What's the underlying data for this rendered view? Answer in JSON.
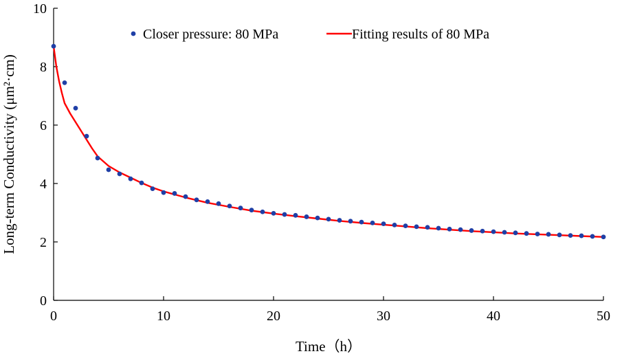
{
  "chart_data": {
    "type": "scatter",
    "title": "",
    "xlabel": "Time（h）",
    "ylabel": "Long-term Conductivity (μm²·cm)",
    "xlim": [
      0,
      50
    ],
    "ylim": [
      0,
      10
    ],
    "xticks": [
      0,
      10,
      20,
      30,
      40,
      50
    ],
    "yticks": [
      0,
      2,
      4,
      6,
      8,
      10
    ],
    "grid": false,
    "legend_position": "top",
    "series": [
      {
        "name": "Closer pressure: 80 MPa",
        "kind": "scatter",
        "color": "#1f3fa6",
        "x": [
          0,
          1,
          2,
          3,
          4,
          5,
          6,
          7,
          8,
          9,
          10,
          11,
          12,
          13,
          14,
          15,
          16,
          17,
          18,
          19,
          20,
          21,
          22,
          23,
          24,
          25,
          26,
          27,
          28,
          29,
          30,
          31,
          32,
          33,
          34,
          35,
          36,
          37,
          38,
          39,
          40,
          41,
          42,
          43,
          44,
          45,
          46,
          47,
          48,
          49,
          50
        ],
        "y": [
          8.7,
          7.45,
          6.58,
          5.62,
          4.87,
          4.47,
          4.33,
          4.16,
          4.02,
          3.82,
          3.69,
          3.66,
          3.55,
          3.44,
          3.38,
          3.31,
          3.23,
          3.16,
          3.09,
          3.03,
          2.98,
          2.94,
          2.91,
          2.86,
          2.82,
          2.78,
          2.74,
          2.71,
          2.68,
          2.65,
          2.62,
          2.58,
          2.55,
          2.52,
          2.5,
          2.47,
          2.44,
          2.42,
          2.39,
          2.37,
          2.35,
          2.33,
          2.31,
          2.29,
          2.27,
          2.26,
          2.24,
          2.22,
          2.21,
          2.19,
          2.17
        ]
      },
      {
        "name": "Fitting results of 80 MPa",
        "kind": "line",
        "color": "#ff0000",
        "x": [
          0,
          0.25,
          0.5,
          0.75,
          1,
          1.5,
          2,
          2.5,
          3,
          3.5,
          4,
          5,
          6,
          7,
          8,
          9,
          10,
          12,
          14,
          16,
          18,
          20,
          22,
          24,
          26,
          28,
          30,
          32,
          34,
          36,
          38,
          40,
          42,
          44,
          46,
          48,
          50
        ],
        "y": [
          8.7,
          8.0,
          7.5,
          7.1,
          6.75,
          6.4,
          6.1,
          5.8,
          5.5,
          5.2,
          4.93,
          4.6,
          4.38,
          4.2,
          4.02,
          3.86,
          3.73,
          3.52,
          3.34,
          3.2,
          3.07,
          2.97,
          2.88,
          2.8,
          2.72,
          2.65,
          2.59,
          2.53,
          2.47,
          2.42,
          2.37,
          2.33,
          2.29,
          2.26,
          2.23,
          2.2,
          2.17
        ]
      }
    ]
  }
}
